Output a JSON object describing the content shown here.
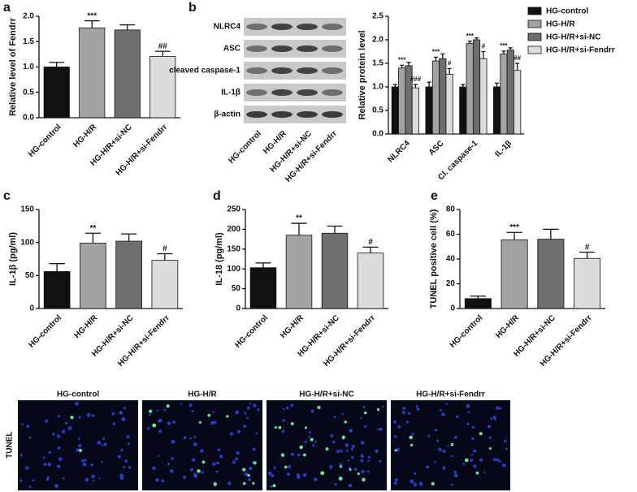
{
  "chart_data": [
    {
      "type": "bar",
      "panel": "a",
      "y_label": "Relative level of Fendrr",
      "categories": [
        "HG-control",
        "HG-H/R",
        "HG-H/R+si-NC",
        "HG-H/R+si-Fendrr"
      ],
      "values": [
        1.0,
        1.77,
        1.73,
        1.21
      ],
      "errors": [
        0.09,
        0.14,
        0.1,
        0.1
      ],
      "annotations": [
        null,
        "***",
        null,
        "##"
      ],
      "colors": [
        "#111111",
        "#a3a3a3",
        "#6e6e6e",
        "#dcdcdc"
      ],
      "ylim": [
        0,
        2.0
      ],
      "yticks": [
        {
          "value": 0,
          "label": "0.0"
        },
        0.5,
        {
          "value": 1,
          "label": "1.0"
        },
        1.5,
        {
          "value": 2,
          "label": "2.0"
        }
      ]
    },
    {
      "type": "grouped-bar",
      "panel": "b",
      "y_label": "Relative protein level",
      "categories": [
        "NLRC4",
        "ASC",
        "Cl. caspase-1",
        "IL-1β"
      ],
      "series": [
        {
          "name": "HG-control",
          "color": "#111111",
          "values": [
            1.0,
            1.0,
            1.0,
            1.0
          ],
          "errors": [
            0.05,
            0.1,
            0.05,
            0.08
          ],
          "annotations": [
            null,
            null,
            null,
            null
          ]
        },
        {
          "name": "HG-H/R",
          "color": "#a3a3a3",
          "values": [
            1.4,
            1.55,
            1.92,
            1.7
          ],
          "errors": [
            0.06,
            0.08,
            0.05,
            0.06
          ],
          "annotations": [
            "***",
            "***",
            "***",
            "***"
          ]
        },
        {
          "name": "HG-H/R+si-NC",
          "color": "#6e6e6e",
          "values": [
            1.45,
            1.6,
            2.0,
            1.78
          ],
          "errors": [
            0.07,
            0.1,
            0.04,
            0.05
          ],
          "annotations": [
            null,
            null,
            null,
            null
          ]
        },
        {
          "name": "HG-H/R+si-Fendrr",
          "color": "#dcdcdc",
          "values": [
            0.98,
            1.27,
            1.6,
            1.35
          ],
          "errors": [
            0.07,
            0.12,
            0.15,
            0.15
          ],
          "annotations": [
            "###",
            "#",
            "#",
            "##"
          ]
        }
      ],
      "legend": "right",
      "ylim": [
        0,
        2.5
      ],
      "yticks": [
        {
          "value": 0,
          "label": "0.0"
        },
        0.5,
        {
          "value": 1,
          "label": "1.0"
        },
        1.5,
        {
          "value": 2,
          "label": "2.0"
        },
        2.5
      ]
    },
    {
      "type": "bar",
      "panel": "c",
      "y_label": "IL-1β (pg/ml)",
      "categories": [
        "HG-control",
        "HG-H/R",
        "HG-H/R+si-NC",
        "HG-H/R+si-Fendrr"
      ],
      "values": [
        56,
        99,
        102,
        73
      ],
      "errors": [
        12,
        15,
        11,
        10
      ],
      "annotations": [
        null,
        "**",
        null,
        "#"
      ],
      "colors": [
        "#111111",
        "#a3a3a3",
        "#6e6e6e",
        "#dcdcdc"
      ],
      "ylim": [
        0,
        150
      ],
      "yticks": [
        0,
        50,
        100,
        150
      ]
    },
    {
      "type": "bar",
      "panel": "d",
      "y_label": "IL-18 (pg/ml)",
      "categories": [
        "HG-control",
        "HG-H/R",
        "HG-H/R+si-NC",
        "HG-H/R+si-Fendrr"
      ],
      "values": [
        103,
        185,
        190,
        140
      ],
      "errors": [
        12,
        30,
        18,
        15
      ],
      "annotations": [
        null,
        "**",
        null,
        "#"
      ],
      "colors": [
        "#111111",
        "#a3a3a3",
        "#6e6e6e",
        "#dcdcdc"
      ],
      "ylim": [
        0,
        250
      ],
      "yticks": [
        0,
        50,
        100,
        150,
        200,
        250
      ]
    },
    {
      "type": "bar",
      "panel": "e",
      "y_label": "TUNEL positive cell (%)",
      "categories": [
        "HG-control",
        "HG-H/R",
        "HG-H/R+si-NC",
        "HG-H/R+si-Fendrr"
      ],
      "values": [
        8,
        55.5,
        56,
        40.5
      ],
      "errors": [
        2,
        6,
        8,
        5
      ],
      "annotations": [
        null,
        "***",
        null,
        "#"
      ],
      "colors": [
        "#111111",
        "#a3a3a3",
        "#6e6e6e",
        "#dcdcdc"
      ],
      "ylim": [
        0,
        80
      ],
      "yticks": [
        0,
        20,
        40,
        60,
        80
      ]
    }
  ],
  "blot": {
    "proteins": [
      "NLRC4",
      "ASC",
      "cleaved caspase-1",
      "IL-1β",
      "β-actin"
    ],
    "lanes": [
      "HG-control",
      "HG-H/R",
      "HG-H/R+si-NC",
      "HG-H/R+si-Fendrr"
    ]
  },
  "tunel": {
    "row_label": "TUNEL",
    "columns": [
      "HG-control",
      "HG-H/R",
      "HG-H/R+si-NC",
      "HG-H/R+si-Fendrr"
    ]
  }
}
